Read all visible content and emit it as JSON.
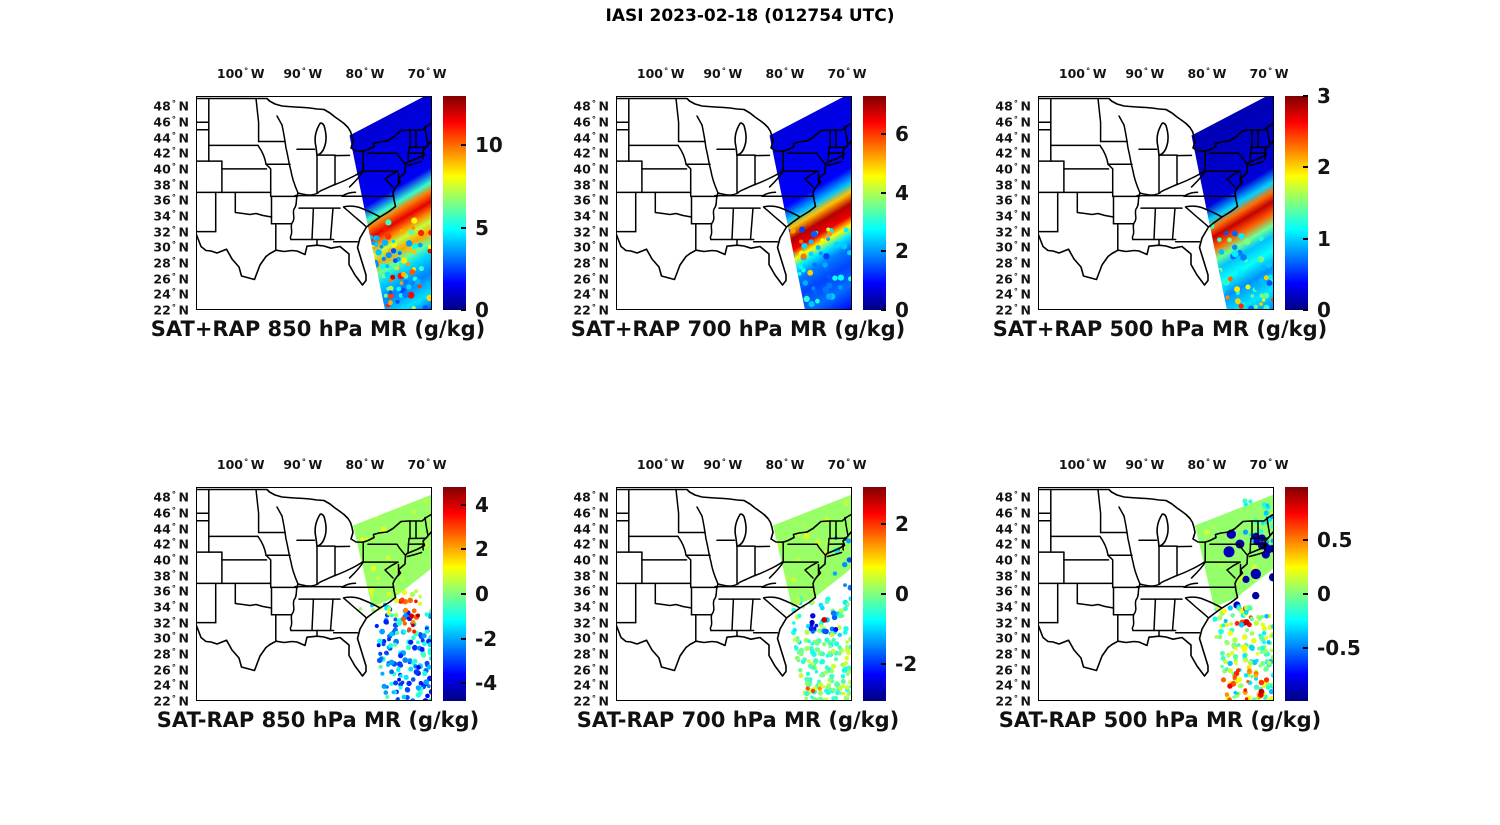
{
  "figure_title": "IASI 2023-02-18 (012754 UTC)",
  "axes": {
    "x_ticks": [
      {
        "num": "100",
        "sym": "°",
        "hem": "W",
        "lon": -100
      },
      {
        "num": "90",
        "sym": "°",
        "hem": "W",
        "lon": -90
      },
      {
        "num": "80",
        "sym": "°",
        "hem": "W",
        "lon": -80
      },
      {
        "num": "70",
        "sym": "°",
        "hem": "W",
        "lon": -70
      }
    ],
    "y_ticks": [
      {
        "num": "48",
        "sym": "°",
        "hem": "N",
        "lat": 48
      },
      {
        "num": "46",
        "sym": "°",
        "hem": "N",
        "lat": 46
      },
      {
        "num": "44",
        "sym": "°",
        "hem": "N",
        "lat": 44
      },
      {
        "num": "42",
        "sym": "°",
        "hem": "N",
        "lat": 42
      },
      {
        "num": "40",
        "sym": "°",
        "hem": "N",
        "lat": 40
      },
      {
        "num": "38",
        "sym": "°",
        "hem": "N",
        "lat": 38
      },
      {
        "num": "36",
        "sym": "°",
        "hem": "N",
        "lat": 36
      },
      {
        "num": "34",
        "sym": "°",
        "hem": "N",
        "lat": 34
      },
      {
        "num": "32",
        "sym": "°",
        "hem": "N",
        "lat": 32
      },
      {
        "num": "30",
        "sym": "°",
        "hem": "N",
        "lat": 30
      },
      {
        "num": "28",
        "sym": "°",
        "hem": "N",
        "lat": 28
      },
      {
        "num": "26",
        "sym": "°",
        "hem": "N",
        "lat": 26
      },
      {
        "num": "24",
        "sym": "°",
        "hem": "N",
        "lat": 24
      },
      {
        "num": "22",
        "sym": "°",
        "hem": "N",
        "lat": 22
      }
    ]
  },
  "chart_data": {
    "type": "heatmap",
    "title": "IASI 2023-02-18 (012754 UTC)",
    "colormap": "jet",
    "geo_extent": {
      "lon_min": -107.2,
      "lon_max": -69.2,
      "lat_min": 22.0,
      "lat_max": 49.3
    },
    "layout_note": "2 rows x 3 cols of maps, colorbar right of each map, longitude labels on top, latitude labels on left",
    "panels": [
      {
        "id": "sat-plus-rap-850",
        "row": 0,
        "col": 0,
        "title": "SAT+RAP 850 hPa MR (g/kg)",
        "colorbar": {
          "min": 0,
          "max": 13,
          "ticks": [
            {
              "label": "0",
              "value": 0
            },
            {
              "label": "5",
              "value": 5
            },
            {
              "label": "10",
              "value": 10
            }
          ]
        },
        "description": "IASI swath over US east coast: MR ~1-2 g/kg north of 40N, 9-12 g/kg band along 33-38N offshore, 3-5 g/kg mottled to the south",
        "field": {
          "kind": "swath",
          "profile": [
            [
              0,
              1.1
            ],
            [
              0.33,
              1.5
            ],
            [
              0.4,
              5.5
            ],
            [
              0.44,
              9.8
            ],
            [
              0.49,
              11.7
            ],
            [
              0.54,
              9.6
            ],
            [
              0.58,
              7.3
            ],
            [
              0.63,
              9.3
            ],
            [
              0.68,
              6.2
            ],
            [
              0.73,
              4.4
            ],
            [
              0.82,
              3.3
            ],
            [
              0.92,
              4.5
            ],
            [
              1,
              2.7
            ]
          ],
          "speckles": [
            {
              "count": 55,
              "x": [
                0.7,
                1.0
              ],
              "y": [
                0.58,
                1.0
              ],
              "v": [
                5,
                12
              ],
              "r": 2.6,
              "seed": 11
            },
            {
              "count": 45,
              "x": [
                0.72,
                1.0
              ],
              "y": [
                0.66,
                1.0
              ],
              "v": [
                2.5,
                5
              ],
              "r": 2.6,
              "seed": 12
            }
          ]
        }
      },
      {
        "id": "sat-plus-rap-700",
        "row": 0,
        "col": 1,
        "title": "SAT+RAP 700 hPa MR (g/kg)",
        "colorbar": {
          "min": 0,
          "max": 7.3,
          "ticks": [
            {
              "label": "0",
              "value": 0
            },
            {
              "label": "2",
              "value": 2
            },
            {
              "label": "4",
              "value": 4
            },
            {
              "label": "6",
              "value": 6
            }
          ]
        },
        "description": "MR <1 g/kg north, intense 6-7 g/kg band 32-38N offshore, 1-2 g/kg blue south of band",
        "field": {
          "kind": "swath",
          "profile": [
            [
              0,
              0.7
            ],
            [
              0.33,
              0.9
            ],
            [
              0.4,
              2.3
            ],
            [
              0.445,
              5.0
            ],
            [
              0.5,
              6.9
            ],
            [
              0.555,
              6.5
            ],
            [
              0.6,
              4.6
            ],
            [
              0.645,
              2.6
            ],
            [
              0.7,
              1.8
            ],
            [
              0.78,
              1.4
            ],
            [
              0.88,
              1.7
            ],
            [
              1,
              0.9
            ]
          ],
          "speckles": [
            {
              "count": 45,
              "x": [
                0.72,
                1.0
              ],
              "y": [
                0.62,
                1.0
              ],
              "v": [
                1.2,
                3.2
              ],
              "r": 2.6,
              "seed": 21
            },
            {
              "count": 8,
              "x": [
                0.75,
                0.95
              ],
              "y": [
                0.62,
                0.85
              ],
              "v": [
                4,
                6
              ],
              "r": 2.6,
              "seed": 22
            }
          ]
        }
      },
      {
        "id": "sat-plus-rap-500",
        "row": 0,
        "col": 2,
        "title": "SAT+RAP 500 hPa MR (g/kg)",
        "colorbar": {
          "min": 0,
          "max": 3,
          "ticks": [
            {
              "label": "0",
              "value": 0
            },
            {
              "label": "1",
              "value": 1
            },
            {
              "label": "2",
              "value": 2
            },
            {
              "label": "3",
              "value": 3
            }
          ]
        },
        "description": "MR ~0.2 g/kg dark blue north, 2.2-2.8 g/kg red band 34-39N, ~1 g/kg cyan mottle south",
        "field": {
          "kind": "swath",
          "profile": [
            [
              0,
              0.16
            ],
            [
              0.33,
              0.26
            ],
            [
              0.4,
              1.0
            ],
            [
              0.445,
              2.3
            ],
            [
              0.49,
              2.8
            ],
            [
              0.545,
              2.35
            ],
            [
              0.6,
              1.45
            ],
            [
              0.65,
              0.95
            ],
            [
              0.72,
              1.15
            ],
            [
              0.8,
              0.8
            ],
            [
              0.9,
              1.05
            ],
            [
              1,
              0.75
            ]
          ],
          "speckles": [
            {
              "count": 45,
              "x": [
                0.72,
                1.0
              ],
              "y": [
                0.6,
                1.0
              ],
              "v": [
                0.6,
                1.6
              ],
              "r": 2.6,
              "seed": 31
            },
            {
              "count": 10,
              "x": [
                0.75,
                1.0
              ],
              "y": [
                0.8,
                1.0
              ],
              "v": [
                1.8,
                2.6
              ],
              "r": 2.4,
              "seed": 32
            }
          ]
        }
      },
      {
        "id": "sat-minus-rap-850",
        "row": 1,
        "col": 0,
        "title": "SAT-RAP 850 hPa MR (g/kg)",
        "colorbar": {
          "min": -4.8,
          "max": 4.8,
          "ticks": [
            {
              "label": "-4",
              "value": -4
            },
            {
              "label": "-2",
              "value": -2
            },
            {
              "label": "0",
              "value": 0
            },
            {
              "label": "2",
              "value": 2
            },
            {
              "label": "4",
              "value": 4
            }
          ]
        },
        "description": "Near-zero/slightly positive (green) differences over Northeast; dense cluster of -1 to -4 g/kg (blue) dots offshore 24-33N with +2 to +4 g/kg arc near 33N 73W",
        "field": {
          "kind": "scatter",
          "wedge_value": 0.25,
          "wedge_speckles": {
            "count": 40,
            "v": [
              0.1,
              1.0
            ],
            "r": 2.4,
            "seed": 40
          },
          "clusters": [
            {
              "count": 160,
              "x": [
                0.74,
                1.0
              ],
              "y": [
                0.55,
                1.0
              ],
              "v": [
                -3.8,
                -0.4
              ],
              "r": 2.4,
              "seed": 41,
              "clipEdge": true
            },
            {
              "count": 16,
              "x": [
                0.865,
                0.945
              ],
              "y": [
                0.525,
                0.7
              ],
              "v": [
                2.2,
                4.4
              ],
              "r": 2.4,
              "seed": 42
            },
            {
              "count": 14,
              "x": [
                0.68,
                0.95
              ],
              "y": [
                0.48,
                0.6
              ],
              "v": [
                0.2,
                1.0
              ],
              "r": 2.3,
              "seed": 43
            }
          ]
        }
      },
      {
        "id": "sat-minus-rap-700",
        "row": 1,
        "col": 1,
        "title": "SAT-RAP 700 hPa MR (g/kg)",
        "colorbar": {
          "min": -3.05,
          "max": 3.05,
          "ticks": [
            {
              "label": "-2",
              "value": -2
            },
            {
              "label": "0",
              "value": 0
            },
            {
              "label": "2",
              "value": 2
            }
          ]
        },
        "description": "Green near-zero differences over Northeast; sparse blue dots along coast; offshore cluster -2 to +0.5 g/kg with one ~+2.9 g/kg red dot near 31N; cyan/green mottle to the south",
        "field": {
          "kind": "scatter",
          "wedge_value": 0.15,
          "wedge_speckles": {
            "count": 40,
            "v": [
              0.05,
              0.6
            ],
            "r": 2.4,
            "seed": 50
          },
          "clusters": [
            {
              "count": 10,
              "x": [
                0.92,
                1.0
              ],
              "y": [
                0.22,
                0.48
              ],
              "v": [
                -1.9,
                -0.8
              ],
              "r": 2.3,
              "seed": 51
            },
            {
              "count": 50,
              "x": [
                0.72,
                1.0
              ],
              "y": [
                0.52,
                0.73
              ],
              "v": [
                -1.1,
                0.5
              ],
              "r": 2.3,
              "seed": 52,
              "clipEdge": true
            },
            {
              "count": 14,
              "x": [
                0.82,
                0.95
              ],
              "y": [
                0.58,
                0.68
              ],
              "v": [
                -2.7,
                -1.5
              ],
              "r": 2.3,
              "seed": 53
            },
            {
              "count": 2,
              "x": [
                0.875,
                0.9
              ],
              "y": [
                0.6,
                0.63
              ],
              "v": [
                2.2,
                2.9
              ],
              "r": 2.5,
              "seed": 54
            },
            {
              "count": 140,
              "x": [
                0.76,
                1.0
              ],
              "y": [
                0.71,
                1.0
              ],
              "v": [
                -0.75,
                0.55
              ],
              "r": 2.3,
              "seed": 55,
              "clipEdge": true
            },
            {
              "count": 3,
              "x": [
                0.8,
                0.88
              ],
              "y": [
                0.9,
                0.99
              ],
              "v": [
                1.4,
                2.0
              ],
              "r": 2.3,
              "seed": 56
            }
          ]
        }
      },
      {
        "id": "sat-minus-rap-500",
        "row": 1,
        "col": 2,
        "title": "SAT-RAP 500 hPa MR (g/kg)",
        "colorbar": {
          "min": -0.99,
          "max": 0.99,
          "ticks": [
            {
              "label": "-0.5",
              "value": -0.5
            },
            {
              "label": "0",
              "value": 0
            },
            {
              "label": "0.5",
              "value": 0.5
            }
          ]
        },
        "description": "Green near-zero over Northeast; large dark-blue (-0.9) dots 36-43N near coast; +0.5 to +0.9 orange blob near 33N 74W; cyan mottle with scattered +0.4 to +0.9 warm dots south",
        "field": {
          "kind": "scatter",
          "wedge_value": 0.04,
          "wedge_speckles": {
            "count": 40,
            "v": [
              0.0,
              0.2
            ],
            "r": 2.4,
            "seed": 60
          },
          "clusters": [
            {
              "count": 22,
              "x": [
                0.875,
                1.0
              ],
              "y": [
                0.03,
                0.28
              ],
              "v": [
                -0.45,
                -0.12
              ],
              "r": 2.2,
              "seed": 61
            },
            {
              "count": 16,
              "x": [
                0.8,
                1.0
              ],
              "y": [
                0.2,
                0.57
              ],
              "v": [
                -0.97,
                -0.86
              ],
              "r": 4.4,
              "seed": 62
            },
            {
              "count": 10,
              "x": [
                0.84,
                0.905
              ],
              "y": [
                0.565,
                0.645
              ],
              "v": [
                0.5,
                0.88
              ],
              "r": 2.6,
              "seed": 63
            },
            {
              "count": 160,
              "x": [
                0.74,
                1.0
              ],
              "y": [
                0.56,
                1.0
              ],
              "v": [
                -0.38,
                0.3
              ],
              "r": 2.3,
              "seed": 64,
              "clipEdge": true
            },
            {
              "count": 18,
              "x": [
                0.76,
                1.0
              ],
              "y": [
                0.84,
                1.0
              ],
              "v": [
                0.38,
                0.68
              ],
              "r": 2.3,
              "seed": 65
            },
            {
              "count": 5,
              "x": [
                0.79,
                0.95
              ],
              "y": [
                0.93,
                1.0
              ],
              "v": [
                0.7,
                0.95
              ],
              "r": 2.4,
              "seed": 66
            }
          ]
        }
      }
    ]
  }
}
